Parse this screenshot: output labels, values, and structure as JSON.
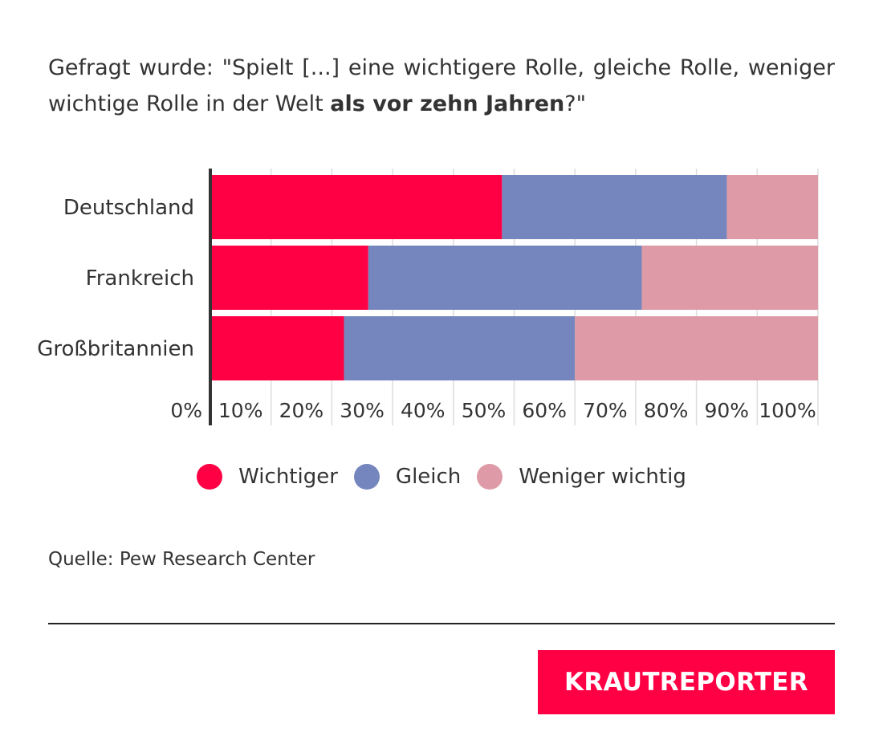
{
  "question": {
    "prefix": "Gefragt wurde: \"Spielt [...] eine wichtigere Rolle, gleiche Rolle, weniger wichtige Rolle in der Welt ",
    "emphasis": "als vor zehn Jahren",
    "suffix": "?\""
  },
  "chart_data": {
    "type": "bar",
    "orientation": "horizontal",
    "stacked": true,
    "categories": [
      "Deutschland",
      "Frankreich",
      "Großbritannien"
    ],
    "series": [
      {
        "name": "Wichtiger",
        "color": "#ff0044",
        "values": [
          48,
          26,
          22
        ]
      },
      {
        "name": "Gleich",
        "color": "#7586be",
        "values": [
          37,
          45,
          38
        ]
      },
      {
        "name": "Weniger wichtig",
        "color": "#de9ba7",
        "values": [
          15,
          29,
          40
        ]
      }
    ],
    "x_ticks": [
      "0%",
      "10%",
      "20%",
      "30%",
      "40%",
      "50%",
      "60%",
      "70%",
      "80%",
      "90%",
      "100%"
    ],
    "xlim": [
      0,
      100
    ],
    "grid": true,
    "legend": "bottom-center"
  },
  "source": "Quelle: Pew Research Center",
  "brand": "KRAUTREPORTER"
}
